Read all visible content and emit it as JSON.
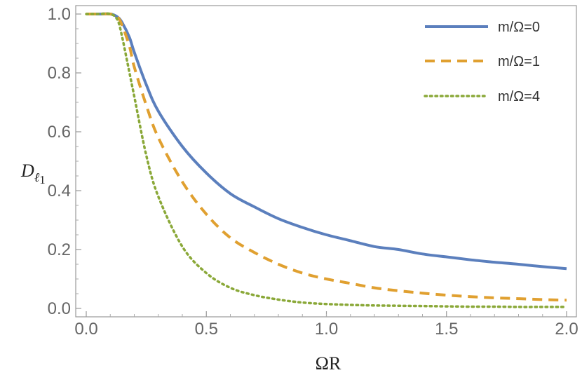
{
  "chart_data": {
    "type": "line",
    "xlabel": "ΩR",
    "ylabel_main": "D",
    "ylabel_sub": "ℓ",
    "ylabel_subsub": "1",
    "xlim": [
      0.0,
      2.0
    ],
    "ylim": [
      0.0,
      1.0
    ],
    "x_ticks": [
      0.0,
      0.5,
      1.0,
      1.5,
      2.0
    ],
    "x_tick_labels": [
      "0.0",
      "0.5",
      "1.0",
      "1.5",
      "2.0"
    ],
    "y_ticks": [
      0.0,
      0.2,
      0.4,
      0.6,
      0.8,
      1.0
    ],
    "y_tick_labels": [
      "0.0",
      "0.2",
      "0.4",
      "0.6",
      "0.8",
      "1.0"
    ],
    "grid": false,
    "legend_position": "top-right",
    "x": [
      0.0,
      0.05,
      0.1,
      0.13,
      0.15,
      0.18,
      0.2,
      0.25,
      0.3,
      0.4,
      0.5,
      0.6,
      0.7,
      0.8,
      0.9,
      1.0,
      1.1,
      1.2,
      1.3,
      1.4,
      1.5,
      1.6,
      1.7,
      1.8,
      1.9,
      2.0
    ],
    "series": [
      {
        "name": "m/Ω=0",
        "color": "#5b7fbd",
        "dash": "solid",
        "values": [
          1.0,
          1.0,
          1.0,
          0.99,
          0.97,
          0.92,
          0.87,
          0.76,
          0.67,
          0.55,
          0.46,
          0.39,
          0.345,
          0.305,
          0.275,
          0.25,
          0.23,
          0.21,
          0.2,
          0.185,
          0.175,
          0.165,
          0.157,
          0.15,
          0.142,
          0.135
        ]
      },
      {
        "name": "m/Ω=1",
        "color": "#e0a030",
        "dash": "dashed",
        "values": [
          1.0,
          1.0,
          1.0,
          0.99,
          0.96,
          0.89,
          0.82,
          0.69,
          0.58,
          0.43,
          0.32,
          0.24,
          0.19,
          0.15,
          0.12,
          0.1,
          0.085,
          0.07,
          0.06,
          0.052,
          0.045,
          0.04,
          0.036,
          0.033,
          0.03,
          0.028
        ]
      },
      {
        "name": "m/Ω=4",
        "color": "#8aa838",
        "dash": "dotted",
        "values": [
          1.0,
          1.0,
          1.0,
          0.98,
          0.92,
          0.8,
          0.72,
          0.52,
          0.38,
          0.21,
          0.12,
          0.07,
          0.045,
          0.03,
          0.02,
          0.015,
          0.012,
          0.01,
          0.009,
          0.008,
          0.007,
          0.006,
          0.006,
          0.005,
          0.005,
          0.005
        ]
      }
    ]
  }
}
